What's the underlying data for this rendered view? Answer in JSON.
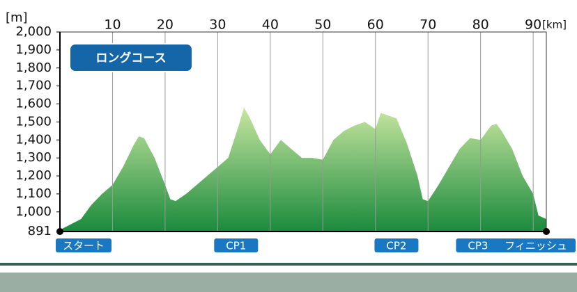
{
  "chart_data": {
    "type": "area",
    "title": "ロングコース",
    "x_label": "[km]",
    "y_label": "[m]",
    "x": [
      0,
      2,
      4,
      6,
      8,
      10,
      12,
      14,
      15,
      16,
      18,
      20,
      21,
      22,
      24,
      26,
      28,
      30,
      32,
      34,
      35,
      36,
      38,
      40,
      42,
      44,
      46,
      48,
      50,
      52,
      54,
      56,
      58,
      60,
      61,
      62,
      64,
      66,
      68,
      69,
      70,
      72,
      74,
      76,
      78,
      80,
      82,
      83,
      84,
      86,
      88,
      90,
      91,
      92.5
    ],
    "values": [
      900,
      930,
      960,
      1040,
      1100,
      1150,
      1250,
      1370,
      1420,
      1410,
      1300,
      1150,
      1070,
      1060,
      1100,
      1150,
      1200,
      1250,
      1300,
      1480,
      1580,
      1530,
      1400,
      1320,
      1400,
      1350,
      1300,
      1300,
      1290,
      1400,
      1450,
      1480,
      1500,
      1460,
      1550,
      1540,
      1520,
      1380,
      1200,
      1070,
      1060,
      1150,
      1250,
      1350,
      1410,
      1400,
      1480,
      1490,
      1450,
      1350,
      1200,
      1100,
      980,
      960
    ],
    "color_top": "#c8e6a0",
    "color_bottom": "#1a8a3c",
    "xlim": [
      0,
      92.5
    ],
    "xticks": [
      10,
      20,
      30,
      40,
      50,
      60,
      70,
      80,
      90
    ],
    "ylim": [
      891,
      2000
    ],
    "yticks": [
      891,
      {
        "value": 1000,
        "label": "1,000"
      },
      {
        "value": 1100,
        "label": "1,100"
      },
      {
        "value": 1200,
        "label": "1,200"
      },
      {
        "value": 1300,
        "label": "1,300"
      },
      {
        "value": 1400,
        "label": "1,400"
      },
      {
        "value": 1500,
        "label": "1,500"
      },
      {
        "value": 1600,
        "label": "1,600"
      },
      {
        "value": 1700,
        "label": "1,700"
      },
      {
        "value": 1800,
        "label": "1,800"
      },
      {
        "value": 1900,
        "label": "1,900"
      },
      {
        "value": 2000,
        "label": "2,000"
      }
    ],
    "grid": true,
    "checkpoints": [
      {
        "label": "スタート",
        "km": 0
      },
      {
        "label": "CP1",
        "km": 33.5
      },
      {
        "label": "CP2",
        "km": 64
      },
      {
        "label": "CP3",
        "km": 79.5
      },
      {
        "label": "フィニッシュ",
        "km": 92.5
      }
    ]
  }
}
